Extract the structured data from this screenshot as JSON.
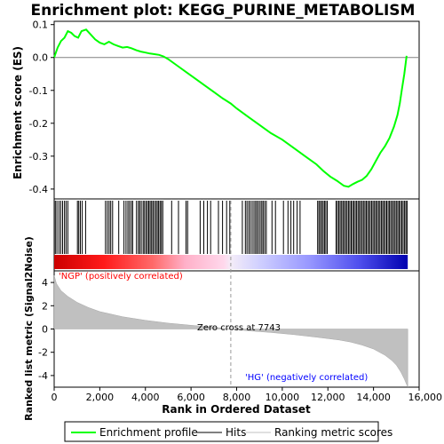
{
  "chart_data": {
    "type": "line",
    "title": "Enrichment plot: KEGG_PURINE_METABOLISM",
    "xlabel": "Rank in Ordered Dataset",
    "ylabel_top": "Enrichment score (ES)",
    "ylabel_bottom": "Ranked list metric (Signal2Noise)",
    "xlim": [
      0,
      16000
    ],
    "x_ticks": [
      0,
      2000,
      4000,
      6000,
      8000,
      10000,
      12000,
      14000,
      16000
    ],
    "x_tick_labels": [
      "0",
      "2,000",
      "4,000",
      "6,000",
      "8,000",
      "10,000",
      "12,000",
      "14,000",
      "16,000"
    ],
    "es_ylim": [
      -0.43,
      0.11
    ],
    "es_ticks": [
      0.1,
      0.0,
      -0.1,
      -0.2,
      -0.3,
      -0.4
    ],
    "es_tick_labels": [
      "0.1",
      "0.0",
      "-0.1",
      "-0.2",
      "-0.3",
      "-0.4"
    ],
    "metric_ylim": [
      -5,
      5
    ],
    "metric_ticks": [
      4,
      2,
      0,
      -2,
      -4
    ],
    "metric_tick_labels": [
      "4",
      "2",
      "0",
      "-2",
      "-4"
    ],
    "colors": {
      "enrichment_line": "#00ff00",
      "hits": "#000000",
      "metric_fill": "#c0c0c0",
      "pos_label": "#ff0000",
      "neg_label": "#0000ff"
    },
    "annotations": {
      "pos_label": "'NGP' (positively correlated)",
      "neg_label": "'HG' (negatively correlated)",
      "zero_cross": "Zero cross at 7743"
    },
    "zero_cross_rank": 7743,
    "dataset_size": 15500,
    "series": [
      {
        "name": "Enrichment profile",
        "x": [
          0,
          150,
          300,
          450,
          600,
          750,
          900,
          1050,
          1200,
          1400,
          1600,
          1800,
          2000,
          2200,
          2400,
          2600,
          2800,
          3000,
          3200,
          3400,
          3600,
          3800,
          4000,
          4200,
          4400,
          4600,
          4800,
          5000,
          5400,
          5800,
          6200,
          6600,
          7000,
          7400,
          7743,
          8000,
          8500,
          9000,
          9500,
          10000,
          10500,
          11000,
          11500,
          11800,
          12100,
          12400,
          12700,
          12900,
          13100,
          13300,
          13500,
          13700,
          13900,
          14100,
          14300,
          14500,
          14700,
          14900,
          15050,
          15150,
          15250,
          15350,
          15450
        ],
        "y": [
          0.0,
          0.03,
          0.05,
          0.06,
          0.08,
          0.075,
          0.065,
          0.06,
          0.08,
          0.085,
          0.07,
          0.055,
          0.045,
          0.04,
          0.048,
          0.04,
          0.035,
          0.03,
          0.032,
          0.028,
          0.022,
          0.018,
          0.015,
          0.012,
          0.01,
          0.008,
          0.003,
          -0.005,
          -0.025,
          -0.045,
          -0.065,
          -0.085,
          -0.105,
          -0.125,
          -0.14,
          -0.155,
          -0.18,
          -0.205,
          -0.23,
          -0.25,
          -0.275,
          -0.3,
          -0.325,
          -0.345,
          -0.362,
          -0.375,
          -0.39,
          -0.393,
          -0.385,
          -0.378,
          -0.372,
          -0.36,
          -0.34,
          -0.315,
          -0.29,
          -0.27,
          -0.245,
          -0.21,
          -0.175,
          -0.14,
          -0.095,
          -0.05,
          0.005
        ]
      },
      {
        "name": "Hits",
        "x": [
          50,
          120,
          210,
          290,
          370,
          450,
          520,
          600,
          1020,
          1080,
          1150,
          1230,
          1380,
          2250,
          2330,
          2410,
          2480,
          2560,
          2830,
          3060,
          3150,
          3230,
          3300,
          3380,
          3440,
          3610,
          3690,
          3750,
          3820,
          3900,
          3960,
          4030,
          4090,
          4150,
          4210,
          4270,
          4330,
          4390,
          4460,
          4520,
          4580,
          4640,
          4700,
          4760,
          5150,
          5450,
          5780,
          5850,
          6400,
          6560,
          6720,
          6860,
          7200,
          7380,
          7560,
          7700,
          8250,
          8380,
          8450,
          8530,
          8600,
          8680,
          8760,
          8830,
          8890,
          8960,
          9030,
          9100,
          9160,
          9230,
          9300,
          9550,
          9700,
          10050,
          10250,
          10380,
          10500,
          10650,
          10780,
          11550,
          11610,
          11670,
          11730,
          11790,
          11850,
          11910,
          11970,
          12360,
          12420,
          12480,
          12540,
          12600,
          12660,
          12720,
          12780,
          12840,
          12900,
          12960,
          13020,
          13080,
          13140,
          13200,
          13260,
          13320,
          13380,
          13440,
          13500,
          13560,
          13620,
          13680,
          13740,
          13800,
          13860,
          13920,
          13980,
          14040,
          14100,
          14160,
          14220,
          14280,
          14340,
          14400,
          14460,
          14520,
          14580,
          14640,
          14700,
          14760,
          14820,
          14880,
          14940,
          15000,
          15060,
          15120,
          15180,
          15240,
          15300,
          15360,
          15420,
          15470
        ]
      },
      {
        "name": "Ranking metric scores",
        "x": [
          0,
          100,
          300,
          600,
          1000,
          1500,
          2000,
          3000,
          4000,
          5000,
          6000,
          7000,
          7743,
          8500,
          9500,
          10500,
          11500,
          12500,
          13000,
          13500,
          14000,
          14500,
          14800,
          15000,
          15200,
          15350,
          15500
        ],
        "y": [
          4.6,
          3.9,
          3.3,
          2.8,
          2.3,
          1.85,
          1.5,
          1.05,
          0.75,
          0.5,
          0.32,
          0.15,
          0.0,
          -0.15,
          -0.3,
          -0.48,
          -0.7,
          -0.95,
          -1.12,
          -1.38,
          -1.72,
          -2.25,
          -2.7,
          -3.1,
          -3.7,
          -4.3,
          -5.0
        ]
      }
    ],
    "legend": [
      "Enrichment profile",
      "Hits",
      "Ranking metric scores"
    ],
    "legend_position": "bottom"
  }
}
